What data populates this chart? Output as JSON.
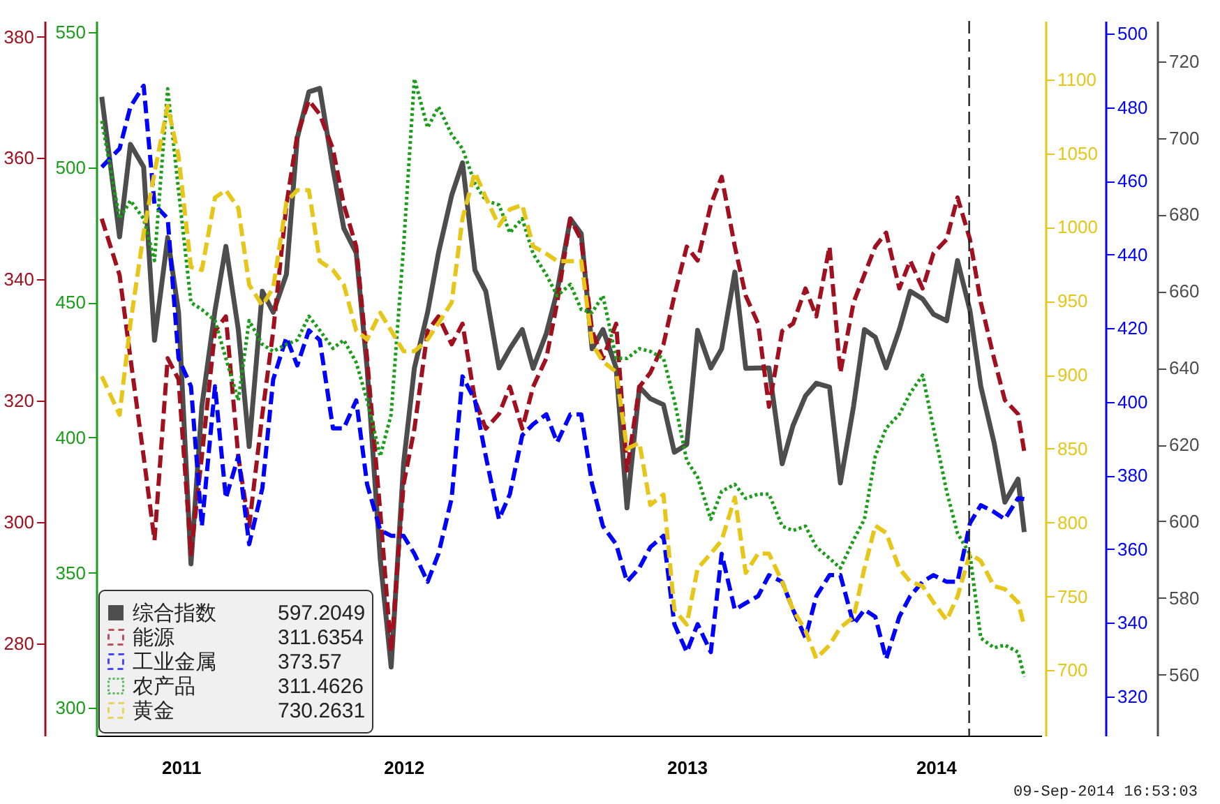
{
  "chart_data": [
    {
      "type": "line",
      "legend": "bottom left",
      "grid": false,
      "x": [
        "2011-06-08",
        "2011-07-01",
        "2011-07-15",
        "2011-08-01",
        "2011-08-15",
        "2011-09-01",
        "2011-09-15",
        "2011-10-01",
        "2011-10-15",
        "2011-11-01",
        "2011-11-15",
        "2011-12-01",
        "2011-12-15",
        "2012-01-01",
        "2012-01-15",
        "2012-02-01",
        "2012-02-15",
        "2012-03-01",
        "2012-03-15",
        "2012-04-01",
        "2012-04-15",
        "2012-05-01",
        "2012-05-15",
        "2012-06-01",
        "2012-06-15",
        "2012-07-01",
        "2012-07-15",
        "2012-08-01",
        "2012-08-15",
        "2012-09-01",
        "2012-09-15",
        "2012-10-01",
        "2012-10-15",
        "2012-11-01",
        "2012-11-15",
        "2012-12-01",
        "2012-12-15",
        "2013-01-01",
        "2013-01-15",
        "2013-02-01",
        "2013-02-15",
        "2013-03-01",
        "2013-03-15",
        "2013-04-01",
        "2013-04-15",
        "2013-05-01",
        "2013-05-15",
        "2013-06-01",
        "2013-06-15",
        "2013-07-01",
        "2013-07-15",
        "2013-08-01",
        "2013-08-15",
        "2013-09-01",
        "2013-09-15",
        "2013-10-01",
        "2013-10-15",
        "2013-11-01",
        "2013-11-15",
        "2013-12-01",
        "2013-12-15",
        "2014-01-01",
        "2014-01-15",
        "2014-02-01",
        "2014-02-15",
        "2014-03-01",
        "2014-03-15",
        "2014-04-01",
        "2014-04-15",
        "2014-05-01",
        "2014-05-15",
        "2014-06-01",
        "2014-06-15",
        "2014-07-01",
        "2014-07-15",
        "2014-08-01",
        "2014-08-15",
        "2014-09-01",
        "2014-09-09"
      ],
      "xlim": [
        "2011-06-01",
        "2014-10-01"
      ],
      "xticks": [
        {
          "value": "2011-09-18",
          "label": "2011"
        },
        {
          "value": "2012-07-01",
          "label": "2012"
        },
        {
          "value": "2013-07-01",
          "label": "2013"
        },
        {
          "value": "2014-05-18",
          "label": "2014"
        }
      ],
      "ylim": [
        544.1,
        730.5
      ],
      "yticks": [
        560,
        580,
        600,
        620,
        640,
        660,
        680,
        700,
        720
      ],
      "y2lim": [
        264.8,
        382.6
      ],
      "y2ticks": [
        280,
        300,
        320,
        340,
        360,
        380
      ],
      "y3lim": [
        309.3,
        503.5
      ],
      "y3ticks": [
        320,
        340,
        360,
        380,
        400,
        420,
        440,
        460,
        480,
        500
      ],
      "ref_lines": [
        {
          "axis": "x",
          "value": "2014-06-30",
          "label": null,
          "color": "#222222",
          "line_style": "dashed"
        }
      ],
      "annotations": [
        "597.2049",
        "311.6354",
        "373.57",
        "09-Sep-2014 16:53:03"
      ],
      "series": [
        {
          "name": "综合指数",
          "color": "#4d4d4d",
          "axis": "y",
          "line_style": "solid",
          "values": [
            710.7,
            674.2,
            698.3,
            692.4,
            647.2,
            674,
            654.5,
            588.9,
            630,
            655,
            671.7,
            650,
            619.5,
            660,
            654.5,
            664.4,
            700,
            712,
            712.9,
            692,
            676.4,
            670,
            640,
            590,
            562,
            615,
            640,
            654.5,
            670,
            685,
            693.5,
            665.5,
            660,
            640,
            645,
            650,
            639.9,
            649,
            660,
            678.9,
            675,
            645,
            650,
            640,
            603.5,
            635,
            632,
            630.4,
            618,
            620,
            649.8,
            640,
            645,
            665,
            639.9,
            640,
            640,
            615,
            625,
            632.7,
            636,
            635,
            610,
            630,
            650,
            648,
            640,
            650,
            660,
            658,
            654,
            652.3,
            668,
            655,
            635.2,
            620.6,
            605,
            611,
            597.2
          ]
        },
        {
          "name": "能源",
          "color": "#a0101e",
          "axis": "y2",
          "line_style": "dashed",
          "values": [
            350,
            340.7,
            327,
            310.8,
            297,
            327,
            323.5,
            294.7,
            310.8,
            331.5,
            333.9,
            310.8,
            299.3,
            317.8,
            331.5,
            352.3,
            363.8,
            369.5,
            367.2,
            361.5,
            352.3,
            345.4,
            327,
            301.6,
            278.6,
            306.2,
            315.4,
            331.5,
            333.9,
            329.3,
            332.7,
            320.1,
            315.4,
            317.8,
            322.3,
            315.4,
            322.3,
            327,
            336.2,
            350,
            346.5,
            331.5,
            327,
            332.7,
            308.5,
            322.3,
            324.6,
            329.3,
            337.3,
            345.4,
            343.1,
            352.3,
            356.9,
            345.4,
            337.3,
            332.7,
            319,
            331.5,
            332.7,
            338.5,
            333.9,
            345.4,
            324.6,
            336.2,
            340.8,
            345.4,
            347.7,
            338.5,
            343.1,
            338.5,
            344.3,
            346.6,
            353.5,
            346.6,
            336.2,
            327,
            320.1,
            317.8,
            311.6
          ]
        },
        {
          "name": "工业金属",
          "color": "#0000ff",
          "axis": "y3",
          "line_style": "dashed",
          "values": [
            463.8,
            468.8,
            480.2,
            485.9,
            453.6,
            449.8,
            411.8,
            404.2,
            366.2,
            404.2,
            373.8,
            385.2,
            361.3,
            376.5,
            406.1,
            417.5,
            409.9,
            419.4,
            416.8,
            392.8,
            392.8,
            400.4,
            377.6,
            365.1,
            363.6,
            363.6,
            358.7,
            351.1,
            358.7,
            373.8,
            406.9,
            400.4,
            385.2,
            368.1,
            374.9,
            390.9,
            393.9,
            396.6,
            389,
            396.6,
            396.6,
            377.6,
            366.2,
            361.3,
            351.1,
            354.9,
            360.5,
            363.6,
            339.6,
            332,
            339.6,
            332,
            358.7,
            343.5,
            345.3,
            347.2,
            352.9,
            351.1,
            343.5,
            335.9,
            347.2,
            352.9,
            352.9,
            339.6,
            343.5,
            341.6,
            330.1,
            341.6,
            347.2,
            351.1,
            352.9,
            351.1,
            351.1,
            367,
            371.9,
            370.1,
            368.1,
            373.8,
            373.6
          ]
        }
      ]
    },
    {
      "type": "line",
      "legend": "bottom left",
      "grid": false,
      "tick_labels": "y",
      "x": [
        "2011-06-08",
        "2011-07-01",
        "2011-07-15",
        "2011-08-01",
        "2011-08-15",
        "2011-09-01",
        "2011-09-15",
        "2011-10-01",
        "2011-10-15",
        "2011-11-01",
        "2011-11-15",
        "2011-12-01",
        "2011-12-15",
        "2012-01-01",
        "2012-01-15",
        "2012-02-01",
        "2012-02-15",
        "2012-03-01",
        "2012-03-15",
        "2012-04-01",
        "2012-04-15",
        "2012-05-01",
        "2012-05-15",
        "2012-06-01",
        "2012-06-15",
        "2012-07-01",
        "2012-07-15",
        "2012-08-01",
        "2012-08-15",
        "2012-09-01",
        "2012-09-15",
        "2012-10-01",
        "2012-10-15",
        "2012-11-01",
        "2012-11-15",
        "2012-12-01",
        "2012-12-15",
        "2013-01-01",
        "2013-01-15",
        "2013-02-01",
        "2013-02-15",
        "2013-03-01",
        "2013-03-15",
        "2013-04-01",
        "2013-04-15",
        "2013-05-01",
        "2013-05-15",
        "2013-06-01",
        "2013-06-15",
        "2013-07-01",
        "2013-07-15",
        "2013-08-01",
        "2013-08-15",
        "2013-09-01",
        "2013-09-15",
        "2013-10-01",
        "2013-10-15",
        "2013-11-01",
        "2013-11-15",
        "2013-12-01",
        "2013-12-15",
        "2014-01-01",
        "2014-01-15",
        "2014-02-01",
        "2014-02-15",
        "2014-03-01",
        "2014-03-15",
        "2014-04-01",
        "2014-04-15",
        "2014-05-01",
        "2014-05-15",
        "2014-06-01",
        "2014-06-15",
        "2014-07-01",
        "2014-07-15",
        "2014-08-01",
        "2014-08-15",
        "2014-09-01",
        "2014-09-09"
      ],
      "xlim": [
        "2011-06-01",
        "2014-10-01"
      ],
      "ylim": [
        289.7,
        554.2
      ],
      "yticks": [
        300,
        350,
        400,
        450,
        500,
        550
      ],
      "y2lim": [
        655.8,
        1139.6
      ],
      "y2ticks": [
        700,
        750,
        800,
        850,
        900,
        950,
        1000,
        1050,
        1100
      ],
      "annotations": [
        "311.4626",
        "730.2631"
      ],
      "series": [
        {
          "name": "农产品",
          "color": "#1a9e1a",
          "axis": "y",
          "line_style": "dotted",
          "values": [
            517.2,
            481,
            487.7,
            481,
            465.5,
            529.1,
            491.4,
            450,
            447.4,
            443.3,
            429.3,
            413.8,
            443.3,
            434.5,
            431.9,
            434.5,
            436.1,
            444.9,
            439.7,
            433,
            436.1,
            427.8,
            413.8,
            393.1,
            408.6,
            470.7,
            532.8,
            514.7,
            522.4,
            512.1,
            506.9,
            494,
            487.7,
            486.1,
            475.8,
            481,
            468,
            460.3,
            452.5,
            456.7,
            447.4,
            446.3,
            452.5,
            429.3,
            429.3,
            432.9,
            431.9,
            429.3,
            413.8,
            391.5,
            385.3,
            369.8,
            380.1,
            382.7,
            377.5,
            379.1,
            379.1,
            367.2,
            365.6,
            367.2,
            359.5,
            355.3,
            351.7,
            362.1,
            369.8,
            393.1,
            403.5,
            408.6,
            416.4,
            423.1,
            403.5,
            380.1,
            364.6,
            356.8,
            325.8,
            322.2,
            323.2,
            320.6,
            311.5
          ]
        },
        {
          "name": "黄金",
          "color": "#e6c619",
          "axis": "y2",
          "line_style": "dashed",
          "values": [
            899,
            873,
            935,
            996,
            1037,
            1082,
            1048,
            973,
            971,
            1020,
            1025,
            1013,
            961,
            947,
            959,
            1017,
            1025,
            1025,
            977,
            971,
            961,
            930,
            924,
            942,
            930,
            916,
            916,
            924,
            935,
            949,
            1006,
            1037,
            1020,
            1001,
            1012,
            1015,
            987,
            982,
            977,
            977,
            977,
            921,
            909,
            902,
            850,
            854,
            812,
            819,
            741,
            731,
            769,
            779,
            788,
            817,
            766,
            779,
            779,
            760,
            741,
            727,
            708,
            717,
            729,
            736,
            769,
            798,
            793,
            769,
            760,
            757,
            746,
            734,
            750,
            779,
            774,
            757,
            755,
            746,
            730
          ]
        }
      ]
    }
  ]
}
